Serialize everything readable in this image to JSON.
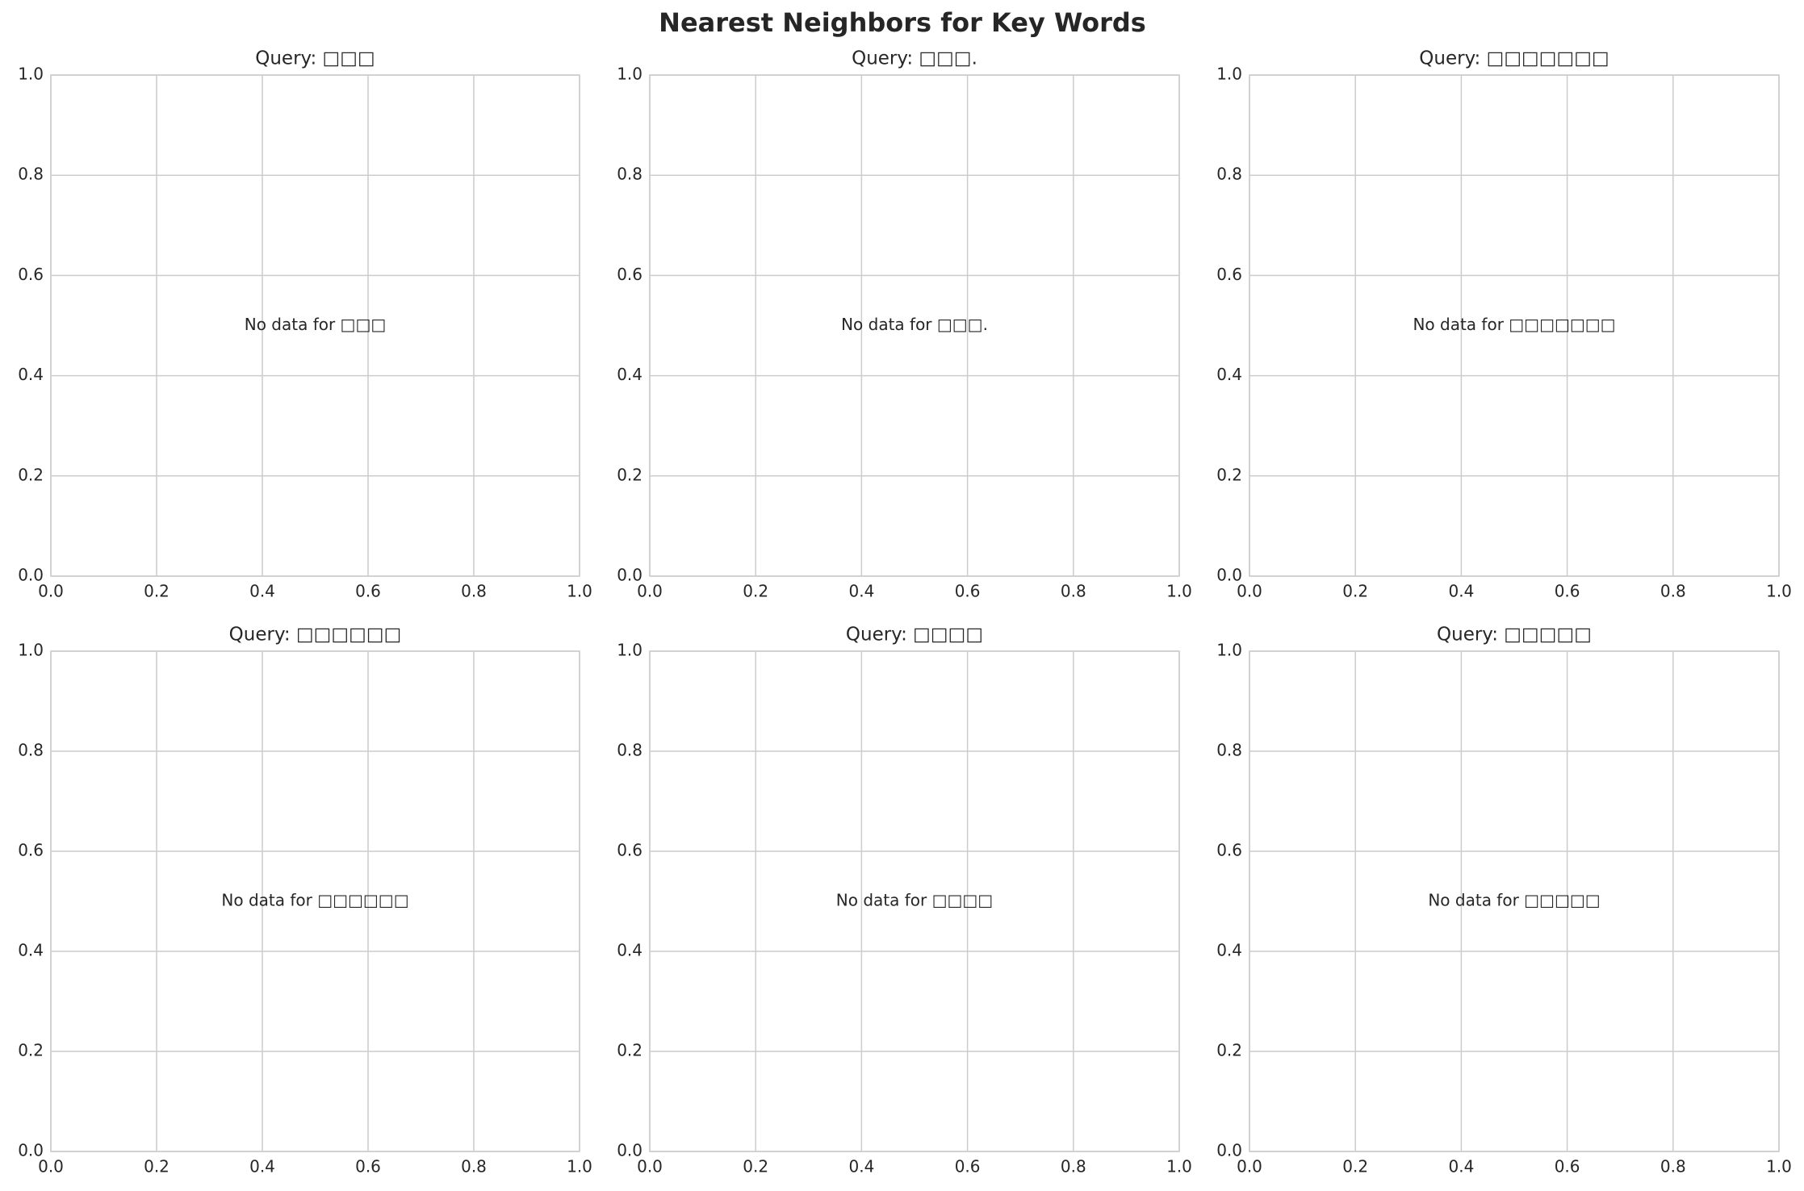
{
  "title": "Nearest Neighbors for Key Words",
  "chart_data": [
    {
      "type": "scatter",
      "title": "Query: □□□",
      "annotation": "No data for □□□",
      "grid": true,
      "xlim": [
        0,
        1
      ],
      "ylim": [
        0,
        1
      ],
      "xticks": [
        {
          "value": 0,
          "label": "0.0"
        },
        0.2,
        0.4,
        0.6,
        0.8,
        {
          "value": 1,
          "label": "1.0"
        }
      ],
      "yticks": [
        {
          "value": 0,
          "label": "0.0"
        },
        0.2,
        0.4,
        0.6,
        0.8,
        {
          "value": 1,
          "label": "1.0"
        }
      ]
    },
    {
      "type": "scatter",
      "title": "Query: □□□.",
      "annotation": "No data for □□□.",
      "grid": true,
      "xlim": [
        0,
        1
      ],
      "ylim": [
        0,
        1
      ],
      "xticks": [
        {
          "value": 0,
          "label": "0.0"
        },
        0.2,
        0.4,
        0.6,
        0.8,
        {
          "value": 1,
          "label": "1.0"
        }
      ],
      "yticks": [
        {
          "value": 0,
          "label": "0.0"
        },
        0.2,
        0.4,
        0.6,
        0.8,
        {
          "value": 1,
          "label": "1.0"
        }
      ]
    },
    {
      "type": "scatter",
      "title": "Query: □□□□□□□",
      "annotation": "No data for □□□□□□□",
      "grid": true,
      "xlim": [
        0,
        1
      ],
      "ylim": [
        0,
        1
      ],
      "xticks": [
        {
          "value": 0,
          "label": "0.0"
        },
        0.2,
        0.4,
        0.6,
        0.8,
        {
          "value": 1,
          "label": "1.0"
        }
      ],
      "yticks": [
        {
          "value": 0,
          "label": "0.0"
        },
        0.2,
        0.4,
        0.6,
        0.8,
        {
          "value": 1,
          "label": "1.0"
        }
      ]
    },
    {
      "type": "scatter",
      "title": "Query: □□□□□□",
      "annotation": "No data for □□□□□□",
      "grid": true,
      "xlim": [
        0,
        1
      ],
      "ylim": [
        0,
        1
      ],
      "xticks": [
        {
          "value": 0,
          "label": "0.0"
        },
        0.2,
        0.4,
        0.6,
        0.8,
        {
          "value": 1,
          "label": "1.0"
        }
      ],
      "yticks": [
        {
          "value": 0,
          "label": "0.0"
        },
        0.2,
        0.4,
        0.6,
        0.8,
        {
          "value": 1,
          "label": "1.0"
        }
      ]
    },
    {
      "type": "scatter",
      "title": "Query: □□□□",
      "annotation": "No data for □□□□",
      "grid": true,
      "xlim": [
        0,
        1
      ],
      "ylim": [
        0,
        1
      ],
      "xticks": [
        {
          "value": 0,
          "label": "0.0"
        },
        0.2,
        0.4,
        0.6,
        0.8,
        {
          "value": 1,
          "label": "1.0"
        }
      ],
      "yticks": [
        {
          "value": 0,
          "label": "0.0"
        },
        0.2,
        0.4,
        0.6,
        0.8,
        {
          "value": 1,
          "label": "1.0"
        }
      ]
    },
    {
      "type": "scatter",
      "title": "Query: □□□□□",
      "annotation": "No data for □□□□□",
      "grid": true,
      "xlim": [
        0,
        1
      ],
      "ylim": [
        0,
        1
      ],
      "xticks": [
        {
          "value": 0,
          "label": "0.0"
        },
        0.2,
        0.4,
        0.6,
        0.8,
        {
          "value": 1,
          "label": "1.0"
        }
      ],
      "yticks": [
        {
          "value": 0,
          "label": "0.0"
        },
        0.2,
        0.4,
        0.6,
        0.8,
        {
          "value": 1,
          "label": "1.0"
        }
      ]
    }
  ]
}
